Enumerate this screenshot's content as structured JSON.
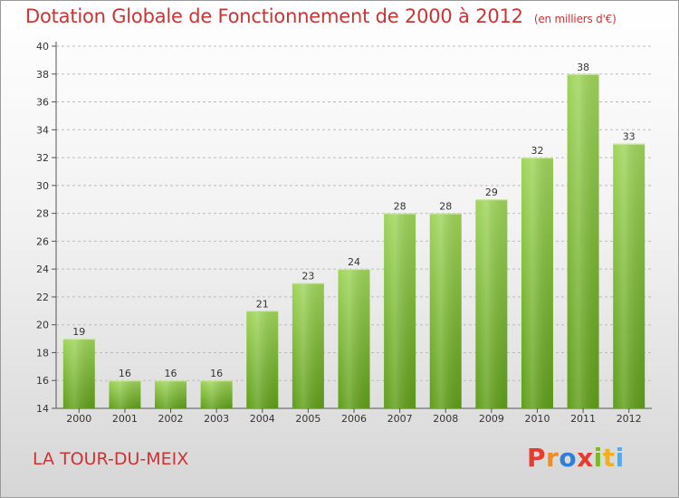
{
  "header": {
    "title": "Dotation Globale de Fonctionnement de 2000 à 2012",
    "unit": "(en milliers d'€)"
  },
  "footer": {
    "commune": "LA TOUR-DU-MEIX",
    "logo": "Proxiti"
  },
  "colors": {
    "title": "#cc3333",
    "bar_top": "#9fd55a",
    "bar_bottom": "#5f9e19",
    "grid": "#bbbbbb"
  },
  "chart_data": {
    "type": "bar",
    "title": "Dotation Globale de Fonctionnement de 2000 à 2012",
    "subtitle": "(en milliers d'€)",
    "xlabel": "",
    "ylabel": "",
    "categories": [
      "2000",
      "2001",
      "2002",
      "2003",
      "2004",
      "2005",
      "2006",
      "2007",
      "2008",
      "2009",
      "2010",
      "2011",
      "2012"
    ],
    "values": [
      19,
      16,
      16,
      16,
      21,
      23,
      24,
      28,
      28,
      29,
      32,
      38,
      33
    ],
    "ylim": [
      14,
      40
    ],
    "yticks": [
      14,
      16,
      18,
      20,
      22,
      24,
      26,
      28,
      30,
      32,
      34,
      36,
      38,
      40
    ],
    "grid": true,
    "legend": "none"
  }
}
